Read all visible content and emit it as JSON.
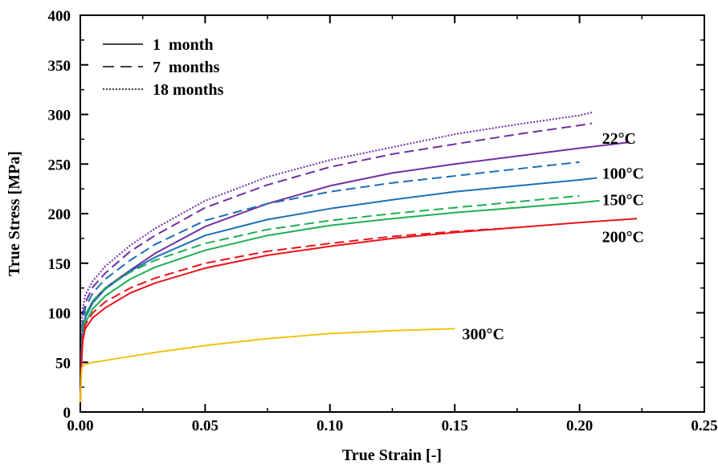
{
  "chart_data": {
    "type": "line",
    "xlabel": "True Strain [-]",
    "ylabel": "True Stress [MPa]",
    "xlim": [
      0,
      0.25
    ],
    "ylim": [
      0,
      400
    ],
    "xticks": [
      0,
      0.05,
      0.1,
      0.15,
      0.2,
      0.25
    ],
    "yticks": [
      0,
      50,
      100,
      150,
      200,
      250,
      300,
      350,
      400
    ],
    "xtick_labels": [
      "0.00",
      "0.05",
      "0.10",
      "0.15",
      "0.20",
      "0.25"
    ],
    "ytick_labels": [
      "0",
      "50",
      "100",
      "150",
      "200",
      "250",
      "300",
      "350",
      "400"
    ],
    "grid": false,
    "legend": {
      "placement": "top-left",
      "entries": [
        {
          "label": "1  month",
          "style": "solid"
        },
        {
          "label": "7  months",
          "style": "dashed"
        },
        {
          "label": "18 months",
          "style": "dotted"
        }
      ]
    },
    "colors": {
      "22C": "#7030a0",
      "100C": "#1f6fb5",
      "150C": "#1fae55",
      "200C": "#e8141b",
      "300C": "#f2c012"
    },
    "curve_labels": [
      {
        "text": "22°C",
        "x": 0.209,
        "y": 276
      },
      {
        "text": "100°C",
        "x": 0.209,
        "y": 241
      },
      {
        "text": "150°C",
        "x": 0.209,
        "y": 214
      },
      {
        "text": "200°C",
        "x": 0.209,
        "y": 177
      },
      {
        "text": "300°C",
        "x": 0.153,
        "y": 79
      }
    ],
    "series": [
      {
        "temperature": "22°C",
        "duration": "1 month",
        "style": "solid",
        "color": "#7030a0",
        "x": [
          0,
          0.0005,
          0.001,
          0.002,
          0.005,
          0.01,
          0.02,
          0.03,
          0.05,
          0.075,
          0.1,
          0.125,
          0.15,
          0.175,
          0.2,
          0.22
        ],
        "y": [
          10,
          60,
          82,
          96,
          112,
          125,
          143,
          160,
          187,
          210,
          228,
          241,
          250,
          258,
          266,
          272
        ]
      },
      {
        "temperature": "22°C",
        "duration": "7 months",
        "style": "dashed",
        "color": "#7030a0",
        "x": [
          0,
          0.0005,
          0.001,
          0.002,
          0.005,
          0.01,
          0.02,
          0.03,
          0.05,
          0.075,
          0.1,
          0.125,
          0.15,
          0.175,
          0.2,
          0.205
        ],
        "y": [
          10,
          70,
          95,
          110,
          126,
          140,
          162,
          178,
          206,
          229,
          247,
          260,
          270,
          280,
          289,
          291
        ]
      },
      {
        "temperature": "22°C",
        "duration": "18 months",
        "style": "dotted",
        "color": "#7030a0",
        "x": [
          0,
          0.0005,
          0.001,
          0.002,
          0.005,
          0.01,
          0.02,
          0.03,
          0.05,
          0.075,
          0.1,
          0.125,
          0.15,
          0.175,
          0.2,
          0.205
        ],
        "y": [
          10,
          80,
          105,
          118,
          132,
          147,
          168,
          185,
          213,
          237,
          254,
          267,
          280,
          290,
          299,
          302
        ]
      },
      {
        "temperature": "100°C",
        "duration": "1 month",
        "style": "solid",
        "color": "#1f6fb5",
        "x": [
          0,
          0.0005,
          0.001,
          0.002,
          0.005,
          0.01,
          0.02,
          0.03,
          0.05,
          0.075,
          0.1,
          0.125,
          0.15,
          0.175,
          0.2,
          0.207
        ],
        "y": [
          10,
          60,
          80,
          95,
          110,
          124,
          142,
          156,
          178,
          194,
          205,
          214,
          222,
          228,
          234,
          236
        ]
      },
      {
        "temperature": "100°C",
        "duration": "7 months",
        "style": "dashed",
        "color": "#1f6fb5",
        "x": [
          0,
          0.0005,
          0.001,
          0.002,
          0.005,
          0.01,
          0.02,
          0.03,
          0.05,
          0.075,
          0.1,
          0.125,
          0.15,
          0.175,
          0.2
        ],
        "y": [
          10,
          65,
          90,
          105,
          120,
          134,
          153,
          169,
          193,
          210,
          222,
          231,
          238,
          245,
          252
        ]
      },
      {
        "temperature": "150°C",
        "duration": "1 month",
        "style": "solid",
        "color": "#1fae55",
        "x": [
          0,
          0.0005,
          0.001,
          0.002,
          0.005,
          0.01,
          0.02,
          0.03,
          0.05,
          0.075,
          0.1,
          0.125,
          0.15,
          0.175,
          0.2,
          0.208
        ],
        "y": [
          10,
          55,
          76,
          90,
          104,
          117,
          134,
          146,
          163,
          178,
          188,
          195,
          201,
          206,
          211,
          213
        ]
      },
      {
        "temperature": "150°C",
        "duration": "7 months",
        "style": "dashed",
        "color": "#1fae55",
        "x": [
          0,
          0.0005,
          0.001,
          0.002,
          0.005,
          0.01,
          0.02,
          0.03,
          0.05,
          0.075,
          0.1,
          0.125,
          0.15,
          0.175,
          0.2
        ],
        "y": [
          10,
          60,
          82,
          98,
          112,
          125,
          141,
          153,
          170,
          184,
          193,
          200,
          206,
          212,
          218
        ]
      },
      {
        "temperature": "200°C",
        "duration": "1 month",
        "style": "solid",
        "color": "#e8141b",
        "x": [
          0,
          0.0005,
          0.001,
          0.002,
          0.005,
          0.01,
          0.02,
          0.03,
          0.05,
          0.075,
          0.1,
          0.125,
          0.15,
          0.175,
          0.2,
          0.223
        ],
        "y": [
          10,
          50,
          72,
          84,
          95,
          105,
          120,
          130,
          145,
          158,
          167,
          175,
          181,
          186,
          191,
          195
        ]
      },
      {
        "temperature": "200°C",
        "duration": "7 months",
        "style": "dashed",
        "color": "#e8141b",
        "x": [
          0,
          0.0005,
          0.001,
          0.002,
          0.005,
          0.01,
          0.02,
          0.03,
          0.05,
          0.075,
          0.1,
          0.125,
          0.15,
          0.175
        ],
        "y": [
          10,
          55,
          76,
          88,
          100,
          111,
          125,
          135,
          150,
          162,
          170,
          177,
          182,
          186
        ]
      },
      {
        "temperature": "300°C",
        "duration": "1 month",
        "style": "solid",
        "color": "#f2c012",
        "x": [
          0,
          0.0003,
          0.0006,
          0.001,
          0.002,
          0.005,
          0.01,
          0.02,
          0.03,
          0.05,
          0.075,
          0.1,
          0.125,
          0.15
        ],
        "y": [
          10,
          30,
          44,
          47,
          48,
          50,
          52,
          56,
          60,
          67,
          74,
          79,
          82,
          84
        ]
      }
    ]
  }
}
